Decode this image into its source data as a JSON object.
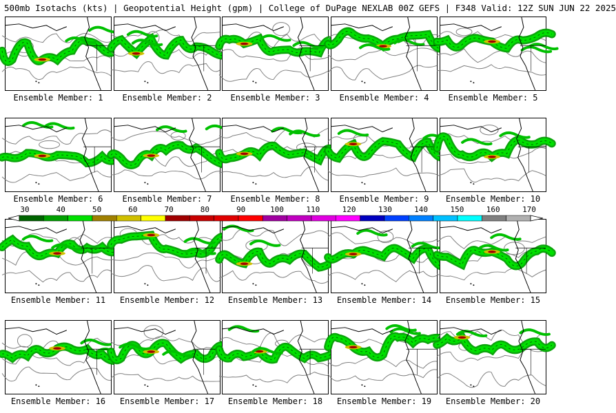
{
  "header": {
    "title": "500mb Isotachs (kts) | Geopotential Height (gpm) | College of DuPage NEXLAB  00Z GEFS | F348 Valid: 12Z SUN JUN 22 2025"
  },
  "colors": {
    "heights": "#7f7f7f",
    "coast": "#000000",
    "scale": [
      "#006400",
      "#00a000",
      "#00e000",
      "#a08000",
      "#d0c000",
      "#ffff00",
      "#a00000",
      "#c80000",
      "#e00000",
      "#ff0000",
      "#a000a0",
      "#c000c0",
      "#e000e0",
      "#ff00ff",
      "#0000c0",
      "#0040ff",
      "#0080ff",
      "#00c0ff",
      "#00ffff",
      "#808080",
      "#b0b0b0"
    ]
  },
  "colorbar": {
    "ticks": [
      "30",
      "40",
      "50",
      "60",
      "70",
      "80",
      "90",
      "100",
      "110",
      "120",
      "130",
      "140",
      "150",
      "160",
      "170"
    ]
  },
  "members": [
    {
      "label": "Ensemble Member: 1"
    },
    {
      "label": "Ensemble Member: 2"
    },
    {
      "label": "Ensemble Member: 3"
    },
    {
      "label": "Ensemble Member: 4"
    },
    {
      "label": "Ensemble Member: 5"
    },
    {
      "label": "Ensemble Member: 6"
    },
    {
      "label": "Ensemble Member: 7"
    },
    {
      "label": "Ensemble Member: 8"
    },
    {
      "label": "Ensemble Member: 9"
    },
    {
      "label": "Ensemble Member: 10"
    },
    {
      "label": "Ensemble Member: 11"
    },
    {
      "label": "Ensemble Member: 12"
    },
    {
      "label": "Ensemble Member: 13"
    },
    {
      "label": "Ensemble Member: 14"
    },
    {
      "label": "Ensemble Member: 15"
    },
    {
      "label": "Ensemble Member: 16"
    },
    {
      "label": "Ensemble Member: 17"
    },
    {
      "label": "Ensemble Member: 18"
    },
    {
      "label": "Ensemble Member: 19"
    },
    {
      "label": "Ensemble Member: 20"
    }
  ]
}
